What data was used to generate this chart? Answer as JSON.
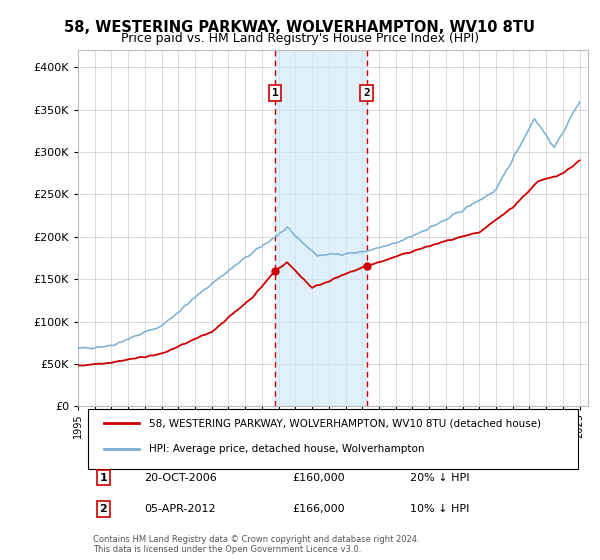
{
  "title": "58, WESTERING PARKWAY, WOLVERHAMPTON, WV10 8TU",
  "subtitle": "Price paid vs. HM Land Registry's House Price Index (HPI)",
  "ylabel_ticks": [
    "£0",
    "£50K",
    "£100K",
    "£150K",
    "£200K",
    "£250K",
    "£300K",
    "£350K",
    "£400K"
  ],
  "ytick_values": [
    0,
    50000,
    100000,
    150000,
    200000,
    250000,
    300000,
    350000,
    400000
  ],
  "ylim": [
    0,
    420000
  ],
  "xlim_start": 1995.0,
  "xlim_end": 2025.5,
  "sale1_x": 2006.79,
  "sale1_y": 160000,
  "sale2_x": 2012.26,
  "sale2_y": 166000,
  "sale1_label": "1",
  "sale2_label": "2",
  "shade_color": "#d0e8f8",
  "shade_alpha": 0.65,
  "vline_color": "#cc0000",
  "vline_style": "--",
  "marker_color": "#cc0000",
  "line1_color": "#cc0000",
  "line2_color": "#7ab0d4",
  "legend_line1": "58, WESTERING PARKWAY, WOLVERHAMPTON, WV10 8TU (detached house)",
  "legend_line2": "HPI: Average price, detached house, Wolverhampton",
  "annotation1_date": "20-OCT-2006",
  "annotation1_price": "£160,000",
  "annotation1_hpi": "20% ↓ HPI",
  "annotation2_date": "05-APR-2012",
  "annotation2_price": "£166,000",
  "annotation2_hpi": "10% ↓ HPI",
  "footnote": "Contains HM Land Registry data © Crown copyright and database right 2024.\nThis data is licensed under the Open Government Licence v3.0.",
  "background_color": "#ffffff",
  "grid_color": "#cccccc",
  "title_fontsize": 10.5,
  "subtitle_fontsize": 9,
  "hpi_anchors_x": [
    1995.0,
    1997.0,
    2000.0,
    2003.0,
    2005.0,
    2007.5,
    2009.3,
    2012.0,
    2014.0,
    2017.0,
    2020.0,
    2022.3,
    2023.5,
    2025.0
  ],
  "hpi_anchors_y": [
    68000,
    72000,
    95000,
    145000,
    175000,
    210000,
    178000,
    182000,
    192000,
    220000,
    255000,
    340000,
    305000,
    360000
  ],
  "prop_anchors_x": [
    1995.0,
    1997.0,
    2000.0,
    2003.0,
    2005.5,
    2006.79,
    2007.5,
    2009.0,
    2010.0,
    2012.26,
    2013.0,
    2015.0,
    2017.0,
    2019.0,
    2021.0,
    2022.5,
    2024.0,
    2025.0
  ],
  "prop_anchors_y": [
    48000,
    52000,
    62000,
    88000,
    130000,
    160000,
    170000,
    140000,
    148000,
    166000,
    170000,
    183000,
    195000,
    205000,
    235000,
    265000,
    275000,
    290000
  ]
}
